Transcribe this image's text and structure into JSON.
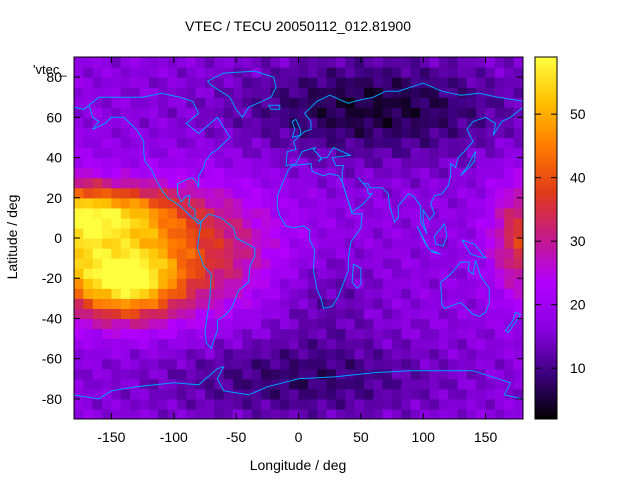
{
  "chart_data": {
    "type": "heatmap",
    "title": "VTEC / TECU 20050112_012.81900",
    "xlabel": "Longitude / deg",
    "ylabel": "Latitude / deg",
    "key_label": "'vtec_",
    "xlim": [
      -180,
      180
    ],
    "ylim": [
      -90,
      90
    ],
    "x_ticks": [
      -150,
      -100,
      -50,
      0,
      50,
      100,
      150
    ],
    "y_ticks": [
      -80,
      -60,
      -40,
      -20,
      0,
      20,
      40,
      60,
      80
    ],
    "colorbar": {
      "range": [
        2,
        59
      ],
      "ticks": [
        10,
        20,
        30,
        40,
        50
      ],
      "palette": [
        "#000000",
        "#3d0080",
        "#8a00e0",
        "#b200ff",
        "#c41a8a",
        "#e03a1a",
        "#ff7a00",
        "#ffc000",
        "#ffff40"
      ]
    },
    "overlay": "continent outlines",
    "overlay_color": "#00a0ff",
    "grid": false,
    "features": [
      {
        "name": "equatorial anomaly Pacific",
        "lon": -140,
        "lat": -20,
        "peak": 57
      },
      {
        "name": "equatorial anomaly north crest",
        "lon": -150,
        "lat": 12,
        "peak": 48
      },
      {
        "name": "western Pacific edge",
        "lon": 178,
        "lat": 0,
        "peak": 36
      },
      {
        "name": "night side minimum",
        "lon": 60,
        "lat": 65,
        "peak": 5
      },
      {
        "name": "south polar minimum",
        "lon": 0,
        "lat": -70,
        "peak": 8
      }
    ],
    "background_value": 17
  }
}
